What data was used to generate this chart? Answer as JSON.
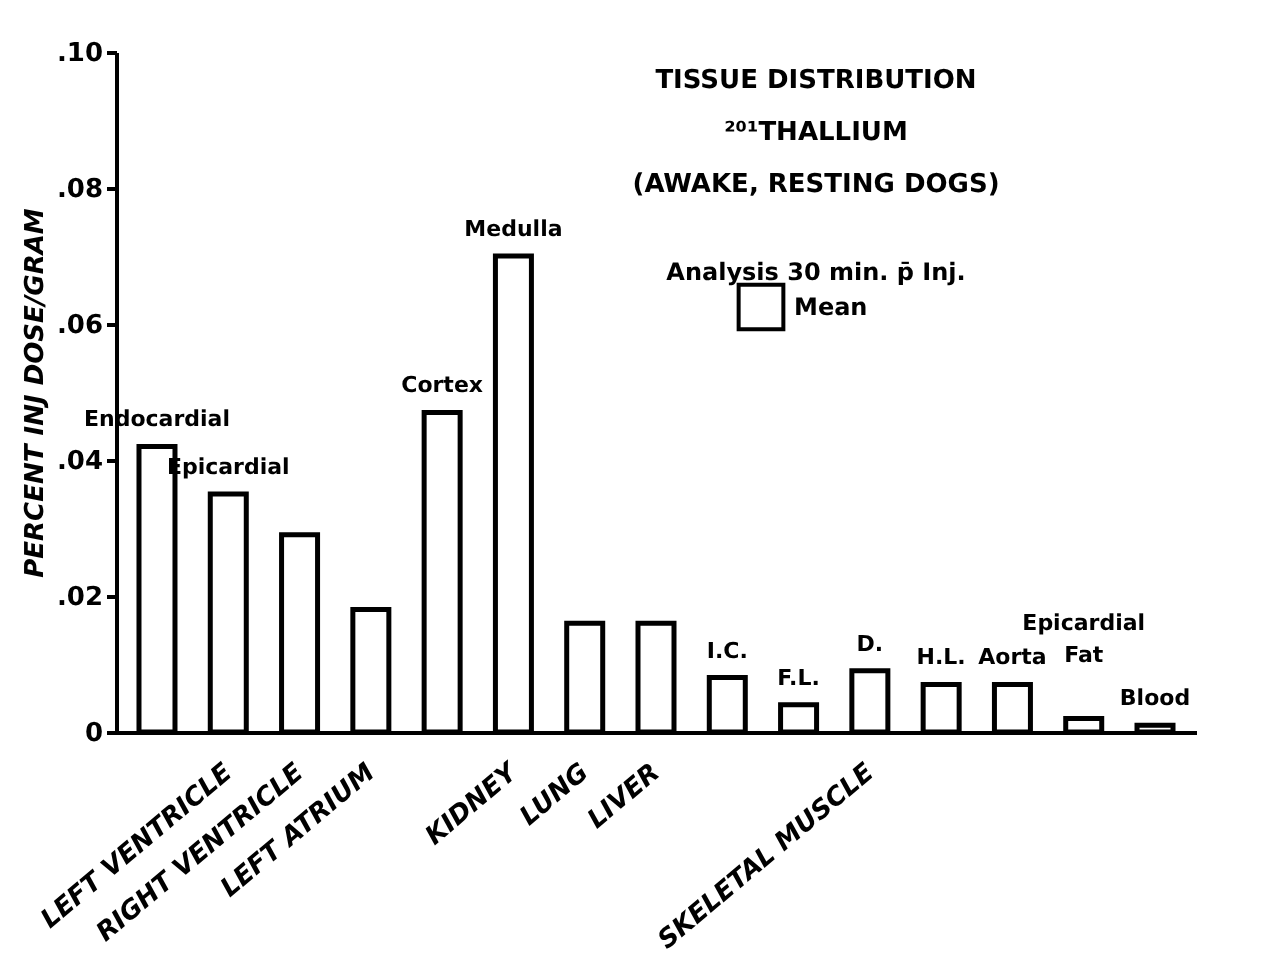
{
  "chart_data": {
    "type": "bar",
    "title": "TISSUE DISTRIBUTION",
    "subtitle": "²⁰¹THALLIUM\n(AWAKE, RESTING DOGS)",
    "ylabel": "PERCENT INJ DOSE/GRAM",
    "annotations": [
      "Analysis 30 min. p̄ Inj."
    ],
    "categories": [
      null,
      "LEFT VENTRICLE",
      "RIGHT VENTRICLE",
      "LEFT ATRIUM",
      null,
      "KIDNEY",
      "LUNG",
      "LIVER",
      null,
      null,
      "SKELETAL MUSCLE",
      null,
      null,
      null,
      null
    ],
    "series": [
      {
        "name": "Mean",
        "color": "#ffffff",
        "values": [
          0.042,
          0.035,
          0.029,
          0.018,
          0.047,
          0.07,
          0.016,
          0.016,
          0.008,
          0.004,
          0.009,
          0.007,
          0.007,
          0.002,
          0.001
        ],
        "value_labels": [
          "Endocardial",
          "Epicardial",
          null,
          null,
          "Cortex",
          "Medulla",
          null,
          null,
          "I.C.",
          "F.L.",
          "D.",
          "H.L.",
          "Aorta",
          "Epicardial\nFat",
          "Blood"
        ]
      }
    ],
    "ylim": [
      0,
      0.1
    ],
    "yticks": [
      {
        "value": 0,
        "label": "0"
      },
      {
        "value": 0.02,
        "label": ".02"
      },
      {
        "value": 0.04,
        "label": ".04"
      },
      {
        "value": 0.06,
        "label": ".06"
      },
      {
        "value": 0.08,
        "label": ".08"
      },
      {
        "value": 0.1,
        "label": ".10"
      }
    ],
    "grid": false,
    "legend": "top right"
  }
}
